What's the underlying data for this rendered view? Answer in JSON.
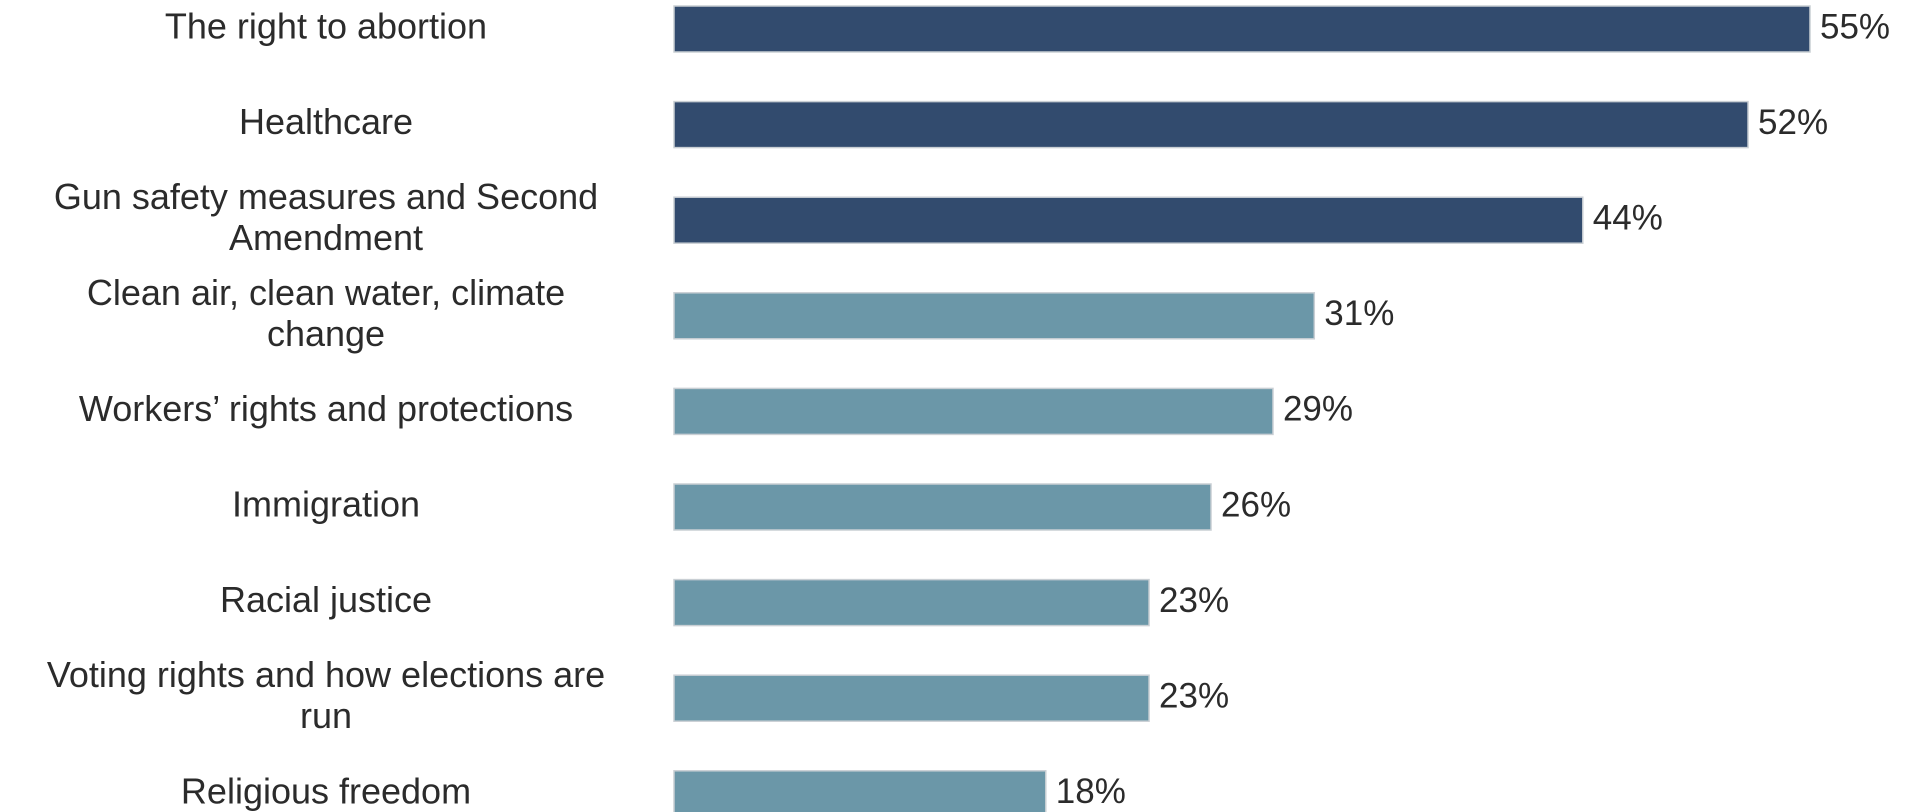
{
  "chart_data": {
    "type": "bar",
    "orientation": "horizontal",
    "categories": [
      [
        "The right to abortion"
      ],
      [
        "Healthcare"
      ],
      [
        "Gun safety measures and Second",
        "Amendment"
      ],
      [
        "Clean air, clean water, climate",
        "change"
      ],
      [
        "Workers’ rights and protections"
      ],
      [
        "Immigration"
      ],
      [
        "Racial justice"
      ],
      [
        "Voting rights and how elections are",
        "run"
      ],
      [
        "Religious freedom"
      ]
    ],
    "values": [
      55,
      52,
      44,
      31,
      29,
      26,
      23,
      23,
      18
    ],
    "value_labels": [
      "55%",
      "52%",
      "44%",
      "31%",
      "29%",
      "26%",
      "23%",
      "23%",
      "18%"
    ],
    "bar_colors": [
      "#324b6e",
      "#324b6e",
      "#324b6e",
      "#6b97a8",
      "#6b97a8",
      "#6b97a8",
      "#6b97a8",
      "#6b97a8",
      "#6b97a8"
    ],
    "xlim": [
      0,
      55
    ],
    "grid": false,
    "title": "",
    "xlabel": "",
    "ylabel": ""
  }
}
